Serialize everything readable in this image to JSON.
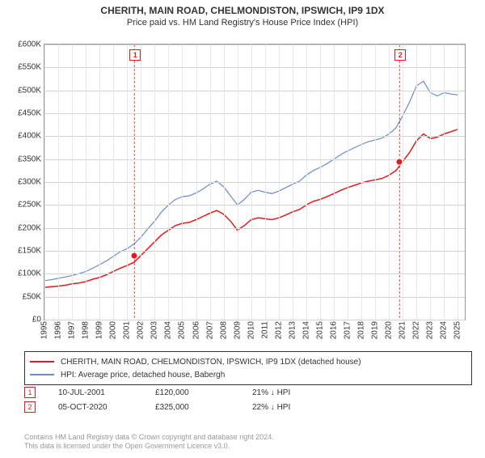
{
  "title": "CHERITH, MAIN ROAD, CHELMONDISTON, IPSWICH, IP9 1DX",
  "subtitle": "Price paid vs. HM Land Registry's House Price Index (HPI)",
  "chart": {
    "type": "line",
    "background_color": "#ffffff",
    "grid_color": "#d3d3d3",
    "border_color": "#999999",
    "xlim": [
      1995,
      2025.5
    ],
    "ylim": [
      0,
      600000
    ],
    "yticks": [
      0,
      50000,
      100000,
      150000,
      200000,
      250000,
      300000,
      350000,
      400000,
      450000,
      500000,
      550000,
      600000
    ],
    "ytick_labels": [
      "£0",
      "£50K",
      "£100K",
      "£150K",
      "£200K",
      "£250K",
      "£300K",
      "£350K",
      "£400K",
      "£450K",
      "£500K",
      "£550K",
      "£600K"
    ],
    "xticks": [
      1995,
      1996,
      1997,
      1998,
      1999,
      2000,
      2001,
      2002,
      2003,
      2004,
      2005,
      2006,
      2007,
      2008,
      2009,
      2010,
      2011,
      2012,
      2013,
      2014,
      2015,
      2016,
      2017,
      2018,
      2019,
      2020,
      2021,
      2022,
      2023,
      2024,
      2025
    ],
    "series": [
      {
        "name": "CHERITH, MAIN ROAD, CHELMONDISTON, IPSWICH, IP9 1DX (detached house)",
        "color": "#e41a1c",
        "line_width": 1.5,
        "x": [
          1995,
          1995.5,
          1996,
          1996.5,
          1997,
          1997.5,
          1998,
          1998.5,
          1999,
          1999.5,
          2000,
          2000.5,
          2001,
          2001.5,
          2002,
          2002.5,
          2003,
          2003.5,
          2004,
          2004.5,
          2005,
          2005.5,
          2006,
          2006.5,
          2007,
          2007.5,
          2008,
          2008.5,
          2009,
          2009.5,
          2010,
          2010.5,
          2011,
          2011.5,
          2012,
          2012.5,
          2013,
          2013.5,
          2014,
          2014.5,
          2015,
          2015.5,
          2016,
          2016.5,
          2017,
          2017.5,
          2018,
          2018.5,
          2019,
          2019.5,
          2020,
          2020.5,
          2021,
          2021.5,
          2022,
          2022.5,
          2023,
          2023.5,
          2024,
          2024.5,
          2025
        ],
        "y": [
          70000,
          72000,
          73000,
          75000,
          78000,
          80000,
          83000,
          88000,
          92000,
          98000,
          105000,
          112000,
          118000,
          125000,
          140000,
          155000,
          170000,
          185000,
          195000,
          205000,
          210000,
          212000,
          218000,
          225000,
          232000,
          238000,
          230000,
          215000,
          195000,
          205000,
          218000,
          222000,
          220000,
          218000,
          222000,
          228000,
          235000,
          240000,
          250000,
          258000,
          262000,
          268000,
          275000,
          282000,
          288000,
          293000,
          298000,
          302000,
          305000,
          308000,
          315000,
          325000,
          345000,
          365000,
          390000,
          405000,
          395000,
          398000,
          405000,
          410000,
          415000
        ]
      },
      {
        "name": "HPI: Average price, detached house, Babergh",
        "color": "#6a8bc9",
        "line_width": 1.2,
        "x": [
          1995,
          1995.5,
          1996,
          1996.5,
          1997,
          1997.5,
          1998,
          1998.5,
          1999,
          1999.5,
          2000,
          2000.5,
          2001,
          2001.5,
          2002,
          2002.5,
          2003,
          2003.5,
          2004,
          2004.5,
          2005,
          2005.5,
          2006,
          2006.5,
          2007,
          2007.5,
          2008,
          2008.5,
          2009,
          2009.5,
          2010,
          2010.5,
          2011,
          2011.5,
          2012,
          2012.5,
          2013,
          2013.5,
          2014,
          2014.5,
          2015,
          2015.5,
          2016,
          2016.5,
          2017,
          2017.5,
          2018,
          2018.5,
          2019,
          2019.5,
          2020,
          2020.5,
          2021,
          2021.5,
          2022,
          2022.5,
          2023,
          2023.5,
          2024,
          2024.5,
          2025
        ],
        "y": [
          85000,
          87000,
          90000,
          93000,
          96000,
          100000,
          105000,
          112000,
          120000,
          128000,
          138000,
          148000,
          155000,
          165000,
          180000,
          198000,
          215000,
          235000,
          250000,
          262000,
          268000,
          270000,
          276000,
          285000,
          295000,
          302000,
          290000,
          270000,
          250000,
          262000,
          278000,
          282000,
          278000,
          275000,
          280000,
          288000,
          295000,
          302000,
          315000,
          325000,
          332000,
          340000,
          350000,
          360000,
          368000,
          375000,
          382000,
          388000,
          392000,
          396000,
          405000,
          418000,
          445000,
          475000,
          510000,
          520000,
          495000,
          488000,
          495000,
          492000,
          490000
        ]
      }
    ],
    "markers": [
      {
        "n": "1",
        "x": 2001.525,
        "date": "10-JUL-2001",
        "price": "£120,000",
        "pct": "21%",
        "dir": "↓ HPI",
        "line_color": "#e41a1c",
        "box_color": "#e41a1c"
      },
      {
        "n": "2",
        "x": 2020.764,
        "date": "05-OCT-2020",
        "price": "£325,000",
        "pct": "22%",
        "dir": "↓ HPI",
        "line_color": "#e41a1c",
        "box_color": "#e41a1c"
      }
    ]
  },
  "legend": [
    {
      "color": "#e41a1c",
      "label": "CHERITH, MAIN ROAD, CHELMONDISTON, IPSWICH, IP9 1DX (detached house)"
    },
    {
      "color": "#6a8bc9",
      "label": "HPI: Average price, detached house, Babergh"
    }
  ],
  "attribution": {
    "line1": "Contains HM Land Registry data © Crown copyright and database right 2024.",
    "line2": "This data is licensed under the Open Government Licence v3.0."
  }
}
